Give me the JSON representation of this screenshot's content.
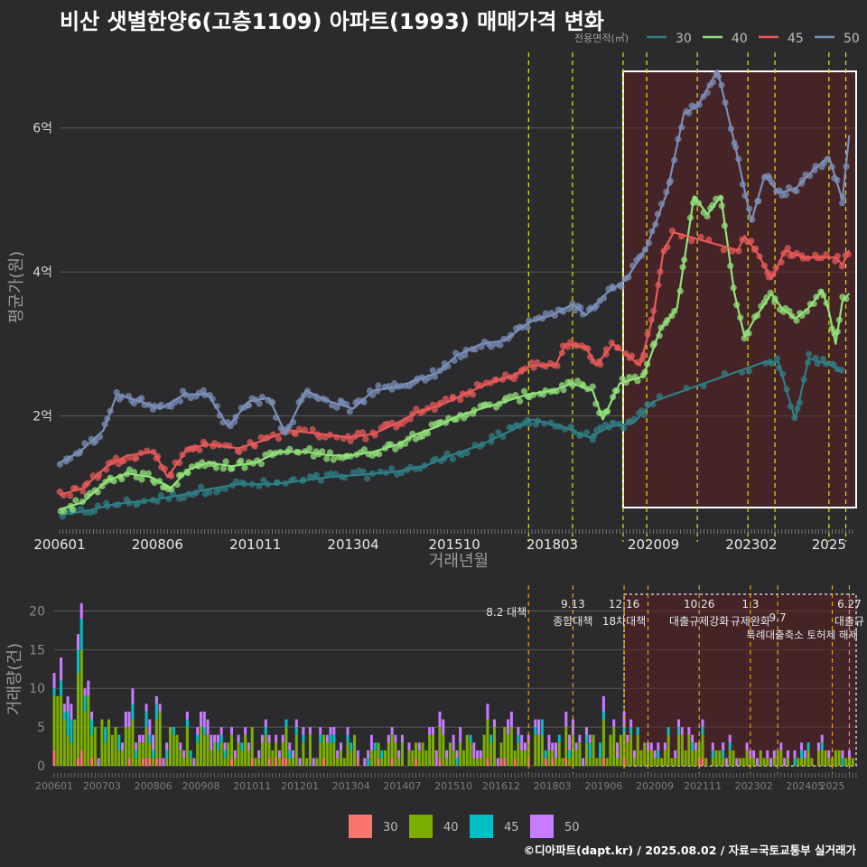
{
  "title": "비산 샛별한양6(고층1109) 아파트(1993) 매매가격 변화",
  "footer": "©디아파트(dapt.kr) / 2025.08.02 / 자료=국토교통부 실거래가",
  "colors": {
    "s30_line": "#2f7f86",
    "s40_line": "#93e27a",
    "s45_line": "#e85a5a",
    "s50_line": "#7b8fb8",
    "b30": "#f8766d",
    "b40": "#7cae00",
    "b45": "#00bfc4",
    "b50": "#c77cff",
    "vline": "#e5e50a",
    "vline_bottom": "#e0a020",
    "box_fill": "#5a1f22"
  },
  "chart_data": [
    {
      "type": "line",
      "legend_title": "전용면적(㎡)",
      "legend_position": "top-right",
      "xlabel": "거래년월",
      "ylabel": "평균가(원)",
      "x_range": [
        "2006-01",
        "2025-08"
      ],
      "y_range": [
        0.5,
        6.9
      ],
      "x_ticks": [
        "200601",
        "200806",
        "201011",
        "201304",
        "201510",
        "201803",
        "202009",
        "202302",
        "2025"
      ],
      "y_ticks": [
        {
          "value": 2,
          "label": "2억"
        },
        {
          "value": 4,
          "label": "4억"
        },
        {
          "value": 6,
          "label": "6억"
        }
      ],
      "highlight_box": [
        "2019-12",
        "2025-08"
      ],
      "policy_dates": [
        "2017-08",
        "2018-09",
        "2019-12",
        "2020-07",
        "2021-10",
        "2023-01",
        "2023-09",
        "2025-01",
        "2025-06"
      ],
      "series": [
        {
          "name": "30",
          "points": [
            [
              "2006-01",
              0.62
            ],
            [
              "2006-09",
              0.68
            ],
            [
              "2007-06",
              0.78
            ],
            [
              "2008-03",
              0.82
            ],
            [
              "2009-01",
              0.9
            ],
            [
              "2009-09",
              0.98
            ],
            [
              "2010-06",
              1.05
            ],
            [
              "2011-04",
              1.05
            ],
            [
              "2012-01",
              1.1
            ],
            [
              "2012-09",
              1.15
            ],
            [
              "2013-06",
              1.18
            ],
            [
              "2014-04",
              1.22
            ],
            [
              "2015-01",
              1.3
            ],
            [
              "2015-09",
              1.45
            ],
            [
              "2016-06",
              1.6
            ],
            [
              "2017-03",
              1.8
            ],
            [
              "2017-09",
              1.95
            ],
            [
              "2018-06",
              1.85
            ],
            [
              "2019-02",
              1.7
            ],
            [
              "2019-08",
              1.85
            ],
            [
              "2020-03",
              1.9
            ],
            [
              "2020-09",
              2.2
            ],
            [
              "2023-06",
              2.75
            ],
            [
              "2023-10",
              2.75
            ],
            [
              "2024-03",
              1.95
            ],
            [
              "2024-07",
              2.8
            ],
            [
              "2025-02",
              2.7
            ],
            [
              "2025-05",
              2.6
            ]
          ]
        },
        {
          "name": "40",
          "points": [
            [
              "2006-01",
              0.7
            ],
            [
              "2006-08",
              0.8
            ],
            [
              "2007-03",
              1.1
            ],
            [
              "2007-09",
              1.2
            ],
            [
              "2008-04",
              1.15
            ],
            [
              "2008-10",
              1.0
            ],
            [
              "2009-03",
              1.25
            ],
            [
              "2009-09",
              1.35
            ],
            [
              "2010-04",
              1.3
            ],
            [
              "2010-11",
              1.35
            ],
            [
              "2011-06",
              1.5
            ],
            [
              "2012-02",
              1.5
            ],
            [
              "2012-09",
              1.45
            ],
            [
              "2013-03",
              1.45
            ],
            [
              "2013-10",
              1.5
            ],
            [
              "2014-05",
              1.6
            ],
            [
              "2014-11",
              1.75
            ],
            [
              "2015-05",
              1.85
            ],
            [
              "2015-11",
              2.0
            ],
            [
              "2016-06",
              2.1
            ],
            [
              "2017-01",
              2.2
            ],
            [
              "2017-08",
              2.3
            ],
            [
              "2018-03",
              2.35
            ],
            [
              "2018-09",
              2.45
            ],
            [
              "2019-03",
              2.35
            ],
            [
              "2019-06",
              1.95
            ],
            [
              "2019-11",
              2.45
            ],
            [
              "2020-06",
              2.55
            ],
            [
              "2020-11",
              3.2
            ],
            [
              "2021-04",
              3.5
            ],
            [
              "2021-09",
              5.05
            ],
            [
              "2022-01",
              4.8
            ],
            [
              "2022-05",
              5.05
            ],
            [
              "2022-09",
              3.7
            ],
            [
              "2022-12",
              3.1
            ],
            [
              "2023-03",
              3.35
            ],
            [
              "2023-08",
              3.7
            ],
            [
              "2023-11",
              3.5
            ],
            [
              "2024-03",
              3.35
            ],
            [
              "2024-07",
              3.5
            ],
            [
              "2024-11",
              3.75
            ],
            [
              "2025-01",
              3.45
            ],
            [
              "2025-03",
              3.0
            ],
            [
              "2025-05",
              3.6
            ],
            [
              "2025-07",
              3.7
            ]
          ]
        },
        {
          "name": "45",
          "points": [
            [
              "2006-01",
              0.9
            ],
            [
              "2006-08",
              1.0
            ],
            [
              "2007-03",
              1.3
            ],
            [
              "2007-09",
              1.45
            ],
            [
              "2008-05",
              1.5
            ],
            [
              "2008-09",
              1.15
            ],
            [
              "2009-03",
              1.55
            ],
            [
              "2009-09",
              1.6
            ],
            [
              "2010-06",
              1.55
            ],
            [
              "2011-01",
              1.65
            ],
            [
              "2011-09",
              1.8
            ],
            [
              "2012-06",
              1.75
            ],
            [
              "2013-03",
              1.7
            ],
            [
              "2013-10",
              1.75
            ],
            [
              "2014-05",
              1.9
            ],
            [
              "2014-11",
              2.05
            ],
            [
              "2015-06",
              2.15
            ],
            [
              "2016-01",
              2.3
            ],
            [
              "2016-08",
              2.45
            ],
            [
              "2017-03",
              2.55
            ],
            [
              "2017-09",
              2.7
            ],
            [
              "2018-04",
              2.7
            ],
            [
              "2018-07",
              3.0
            ],
            [
              "2019-01",
              2.95
            ],
            [
              "2019-04",
              2.7
            ],
            [
              "2019-09",
              3.0
            ],
            [
              "2020-05",
              2.7
            ],
            [
              "2020-09",
              3.4
            ],
            [
              "2020-12",
              4.3
            ],
            [
              "2021-03",
              4.55
            ],
            [
              "2022-10",
              4.3
            ],
            [
              "2022-12",
              4.5
            ],
            [
              "2023-04",
              4.25
            ],
            [
              "2023-08",
              3.9
            ],
            [
              "2023-12",
              4.3
            ],
            [
              "2024-06",
              4.2
            ],
            [
              "2025-03",
              4.2
            ],
            [
              "2025-05",
              4.1
            ],
            [
              "2025-07",
              4.3
            ]
          ]
        },
        {
          "name": "50",
          "points": [
            [
              "2006-01",
              1.35
            ],
            [
              "2006-07",
              1.5
            ],
            [
              "2007-02",
              1.8
            ],
            [
              "2007-06",
              2.3
            ],
            [
              "2008-01",
              2.2
            ],
            [
              "2008-07",
              2.1
            ],
            [
              "2009-02",
              2.3
            ],
            [
              "2009-09",
              2.3
            ],
            [
              "2010-03",
              1.85
            ],
            [
              "2010-09",
              2.2
            ],
            [
              "2011-03",
              2.25
            ],
            [
              "2011-08",
              1.75
            ],
            [
              "2012-02",
              2.35
            ],
            [
              "2012-09",
              2.2
            ],
            [
              "2013-04",
              2.1
            ],
            [
              "2013-10",
              2.35
            ],
            [
              "2014-05",
              2.4
            ],
            [
              "2014-11",
              2.5
            ],
            [
              "2015-05",
              2.6
            ],
            [
              "2015-11",
              2.85
            ],
            [
              "2016-06",
              3.0
            ],
            [
              "2017-01",
              3.05
            ],
            [
              "2017-08",
              3.3
            ],
            [
              "2018-03",
              3.4
            ],
            [
              "2018-09",
              3.55
            ],
            [
              "2019-01",
              3.4
            ],
            [
              "2019-07",
              3.7
            ],
            [
              "2020-01",
              3.9
            ],
            [
              "2020-07",
              4.35
            ],
            [
              "2021-01",
              5.1
            ],
            [
              "2021-06",
              6.2
            ],
            [
              "2021-10",
              6.3
            ],
            [
              "2022-04",
              6.8
            ],
            [
              "2022-09",
              5.8
            ],
            [
              "2023-02",
              4.7
            ],
            [
              "2023-06",
              5.35
            ],
            [
              "2023-10",
              5.1
            ],
            [
              "2024-03",
              5.15
            ],
            [
              "2024-08",
              5.4
            ],
            [
              "2025-01",
              5.6
            ],
            [
              "2025-05",
              5.0
            ],
            [
              "2025-07",
              5.9
            ]
          ]
        }
      ]
    },
    {
      "type": "bar",
      "stacked": true,
      "ylabel": "거래량(건)",
      "y_range": [
        0,
        22.5
      ],
      "y_ticks": [
        0,
        5,
        10,
        15,
        20
      ],
      "x_ticks": [
        "200601",
        "200703",
        "200806",
        "200908",
        "201011",
        "201201",
        "201304",
        "201407",
        "201510",
        "201612",
        "201803",
        "201906",
        "202009",
        "202111",
        "202302",
        "202405",
        "2025"
      ],
      "series_names": [
        "30",
        "40",
        "45",
        "50"
      ],
      "legend_position": "bottom",
      "annotations": [
        {
          "date": "2017-08",
          "line1": "8.2 대책",
          "line2": ""
        },
        {
          "date": "2018-09",
          "line1": "9.13",
          "line2": "종합대책"
        },
        {
          "date": "2019-12",
          "line1": "12.16",
          "line2": "18차대책"
        },
        {
          "date": "2021-10",
          "line1": "10.26",
          "line2": "대출규제강화"
        },
        {
          "date": "2023-01",
          "line1": "1.3",
          "line2": "규제완화"
        },
        {
          "date": "2023-09",
          "line1": "",
          "line2": "9.7"
        },
        {
          "date": "2025-06",
          "line1": "6.27",
          "line2": "대출규"
        }
      ],
      "annotation_extra": "특례대출축소 토허제 해제"
    }
  ]
}
